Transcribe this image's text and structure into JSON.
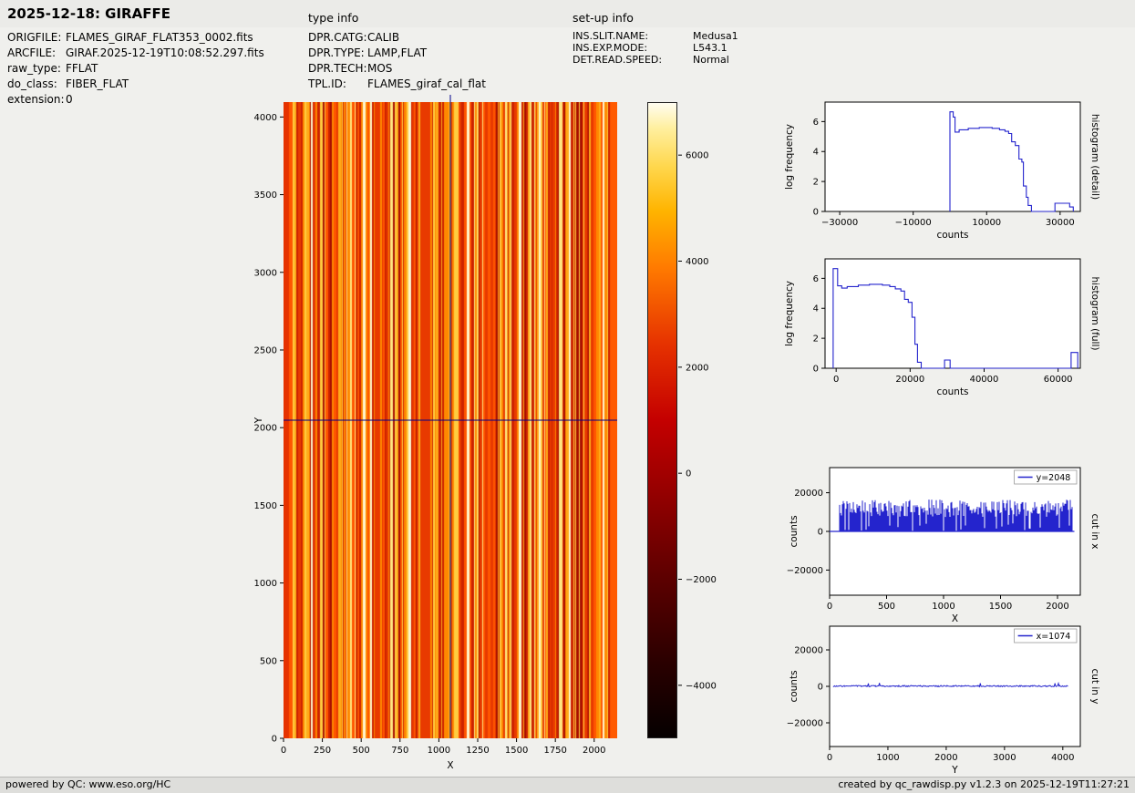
{
  "header": {
    "title": "2025-12-18: GIRAFFE",
    "type_info_label": "type info",
    "setup_info_label": "set-up info"
  },
  "file_info": {
    "rows": [
      {
        "label": "ORIGFILE:",
        "value": "FLAMES_GIRAF_FLAT353_0002.fits"
      },
      {
        "label": "ARCFILE:",
        "value": "GIRAF.2025-12-19T10:08:52.297.fits"
      },
      {
        "label": "raw_type:",
        "value": "FFLAT"
      },
      {
        "label": "do_class:",
        "value": "FIBER_FLAT"
      },
      {
        "label": "extension:",
        "value": "0"
      }
    ]
  },
  "type_info": {
    "rows": [
      {
        "label": "DPR.CATG:",
        "value": "CALIB"
      },
      {
        "label": "DPR.TYPE:",
        "value": "LAMP,FLAT"
      },
      {
        "label": "DPR.TECH:",
        "value": "MOS"
      },
      {
        "label": "TPL.ID:",
        "value": "FLAMES_giraf_cal_flat"
      }
    ]
  },
  "setup_info": {
    "rows": [
      {
        "label": "INS.SLIT.NAME:",
        "value": "Medusa1"
      },
      {
        "label": "INS.EXP.MODE:",
        "value": "L543.1"
      },
      {
        "label": "DET.READ.SPEED:",
        "value": "Normal"
      }
    ]
  },
  "footer": {
    "left": "powered by QC: www.eso.org/HC",
    "right": "created by qc_rawdisp.py v1.2.3 on 2025-12-19T11:27:21"
  },
  "chart_data": [
    {
      "id": "main_image",
      "type": "heatmap",
      "description": "Raw GIRAFFE fiber flat-field frame: dense vertical fiber stripes rendered with hot colormap, blue crosshair marking the cut positions",
      "xlabel": "X",
      "ylabel": "Y",
      "xlim": [
        0,
        2148
      ],
      "ylim": [
        0,
        4096
      ],
      "x_ticks": [
        0,
        250,
        500,
        750,
        1000,
        1250,
        1500,
        1750,
        2000
      ],
      "y_ticks": [
        0,
        500,
        1000,
        1500,
        2000,
        2500,
        3000,
        3500,
        4000
      ],
      "crosshair": {
        "x": 1074,
        "y": 2048,
        "color": "#00008b"
      },
      "stripe_seed": 11,
      "edge_left": "#e63200",
      "edge_right": "#ff5a00",
      "stripe_palette": [
        {
          "c": "#a80e00",
          "w": 0.08
        },
        {
          "c": "#cc2200",
          "w": 0.15
        },
        {
          "c": "#e83a00",
          "w": 0.17
        },
        {
          "c": "#ff5500",
          "w": 0.15
        },
        {
          "c": "#ff8800",
          "w": 0.12
        },
        {
          "c": "#ffaa1a",
          "w": 0.11
        },
        {
          "c": "#ffcc40",
          "w": 0.1
        },
        {
          "c": "#ffe680",
          "w": 0.07
        },
        {
          "c": "#fff7cf",
          "w": 0.05
        }
      ],
      "colorbar": {
        "vmin": -5000,
        "vmax": 7000,
        "ticks": [
          6000,
          4000,
          2000,
          0,
          -2000,
          -4000
        ],
        "gradient_stops": [
          "#050000 0%",
          "#2b0000 12%",
          "#600000 26%",
          "#9b0000 40%",
          "#c40000 50%",
          "#e63200 62%",
          "#ff7a00 74%",
          "#ffb400 83%",
          "#ffd74d 90%",
          "#ffef9e 96%",
          "#fffdf0 100%"
        ]
      }
    },
    {
      "id": "hist_detail",
      "type": "line",
      "xlabel": "counts",
      "ylabel": "log frequency",
      "right_label": "histogram (detail)",
      "xlim": [
        -34000,
        35500
      ],
      "ylim": [
        0,
        7.3
      ],
      "x_ticks": [
        -30000,
        -10000,
        10000,
        30000
      ],
      "y_ticks": [
        0,
        2,
        4,
        6
      ],
      "line_color": "#2424cd",
      "points": [
        [
          0,
          0
        ],
        [
          0,
          6.65
        ],
        [
          900,
          6.65
        ],
        [
          900,
          6.3
        ],
        [
          1400,
          6.3
        ],
        [
          1400,
          5.3
        ],
        [
          2500,
          5.3
        ],
        [
          2500,
          5.45
        ],
        [
          5000,
          5.45
        ],
        [
          5000,
          5.55
        ],
        [
          8000,
          5.55
        ],
        [
          8000,
          5.6
        ],
        [
          11500,
          5.6
        ],
        [
          11500,
          5.55
        ],
        [
          13500,
          5.55
        ],
        [
          13500,
          5.45
        ],
        [
          15000,
          5.45
        ],
        [
          15000,
          5.35
        ],
        [
          16000,
          5.35
        ],
        [
          16000,
          5.2
        ],
        [
          16800,
          5.2
        ],
        [
          16800,
          4.65
        ],
        [
          17800,
          4.65
        ],
        [
          17800,
          4.4
        ],
        [
          18800,
          4.4
        ],
        [
          18800,
          3.5
        ],
        [
          19600,
          3.5
        ],
        [
          19600,
          3.3
        ],
        [
          20000,
          3.3
        ],
        [
          20000,
          1.7
        ],
        [
          20800,
          1.7
        ],
        [
          20800,
          0.95
        ],
        [
          21300,
          0.95
        ],
        [
          21300,
          0.4
        ],
        [
          22200,
          0.4
        ],
        [
          22200,
          0
        ],
        [
          28600,
          0
        ],
        [
          28600,
          0.55
        ],
        [
          32600,
          0.55
        ],
        [
          32600,
          0.3
        ],
        [
          33600,
          0.3
        ],
        [
          33600,
          0
        ]
      ]
    },
    {
      "id": "hist_full",
      "type": "line",
      "xlabel": "counts",
      "ylabel": "log frequency",
      "right_label": "histogram (full)",
      "xlim": [
        -3000,
        66000
      ],
      "ylim": [
        0,
        7.3
      ],
      "x_ticks": [
        0,
        20000,
        40000,
        60000
      ],
      "y_ticks": [
        0,
        2,
        4,
        6
      ],
      "line_color": "#2424cd",
      "points": [
        [
          -800,
          0
        ],
        [
          -800,
          6.65
        ],
        [
          400,
          6.65
        ],
        [
          400,
          5.5
        ],
        [
          1500,
          5.5
        ],
        [
          1500,
          5.35
        ],
        [
          3000,
          5.35
        ],
        [
          3000,
          5.45
        ],
        [
          6000,
          5.45
        ],
        [
          6000,
          5.55
        ],
        [
          9000,
          5.55
        ],
        [
          9000,
          5.6
        ],
        [
          12500,
          5.6
        ],
        [
          12500,
          5.55
        ],
        [
          14500,
          5.55
        ],
        [
          14500,
          5.45
        ],
        [
          16000,
          5.45
        ],
        [
          16000,
          5.3
        ],
        [
          17500,
          5.3
        ],
        [
          17500,
          5.15
        ],
        [
          18500,
          5.15
        ],
        [
          18500,
          4.6
        ],
        [
          19500,
          4.6
        ],
        [
          19500,
          4.4
        ],
        [
          20500,
          4.4
        ],
        [
          20500,
          3.4
        ],
        [
          21300,
          3.4
        ],
        [
          21300,
          1.6
        ],
        [
          22000,
          1.6
        ],
        [
          22000,
          0.4
        ],
        [
          23000,
          0.4
        ],
        [
          23000,
          0
        ],
        [
          29300,
          0
        ],
        [
          29300,
          0.55
        ],
        [
          30800,
          0.55
        ],
        [
          30800,
          0
        ],
        [
          63500,
          0
        ],
        [
          63500,
          1.05
        ],
        [
          65300,
          1.05
        ],
        [
          65300,
          0
        ]
      ]
    },
    {
      "id": "cut_x",
      "type": "noise-fill",
      "legend": "y=2048",
      "xlabel": "X",
      "ylabel": "counts",
      "right_label": "cut in x",
      "xlim": [
        0,
        2200
      ],
      "ylim": [
        -33000,
        33000
      ],
      "x_ticks": [
        0,
        500,
        1000,
        1500,
        2000
      ],
      "y_ticks": [
        -20000,
        0,
        20000
      ],
      "line_color": "#2424cd",
      "baseline": [
        0,
        2148
      ],
      "noise": {
        "x_start": 90,
        "x_end": 2130,
        "base": 12000,
        "spread": 4500,
        "dropout_prob": 0.08,
        "seed": 5
      }
    },
    {
      "id": "cut_y",
      "type": "jitter-line",
      "legend": "x=1074",
      "xlabel": "Y",
      "ylabel": "counts",
      "right_label": "cut in y",
      "xlim": [
        0,
        4300
      ],
      "ylim": [
        -33000,
        33000
      ],
      "x_ticks": [
        0,
        1000,
        2000,
        3000,
        4000
      ],
      "y_ticks": [
        -20000,
        0,
        20000
      ],
      "line_color": "#2424cd",
      "noise": {
        "x_start": 60,
        "x_end": 4090,
        "base": 150,
        "spread": 350,
        "spike_prob": 0.015,
        "spike_amp": 1400,
        "seed": 9
      }
    }
  ]
}
